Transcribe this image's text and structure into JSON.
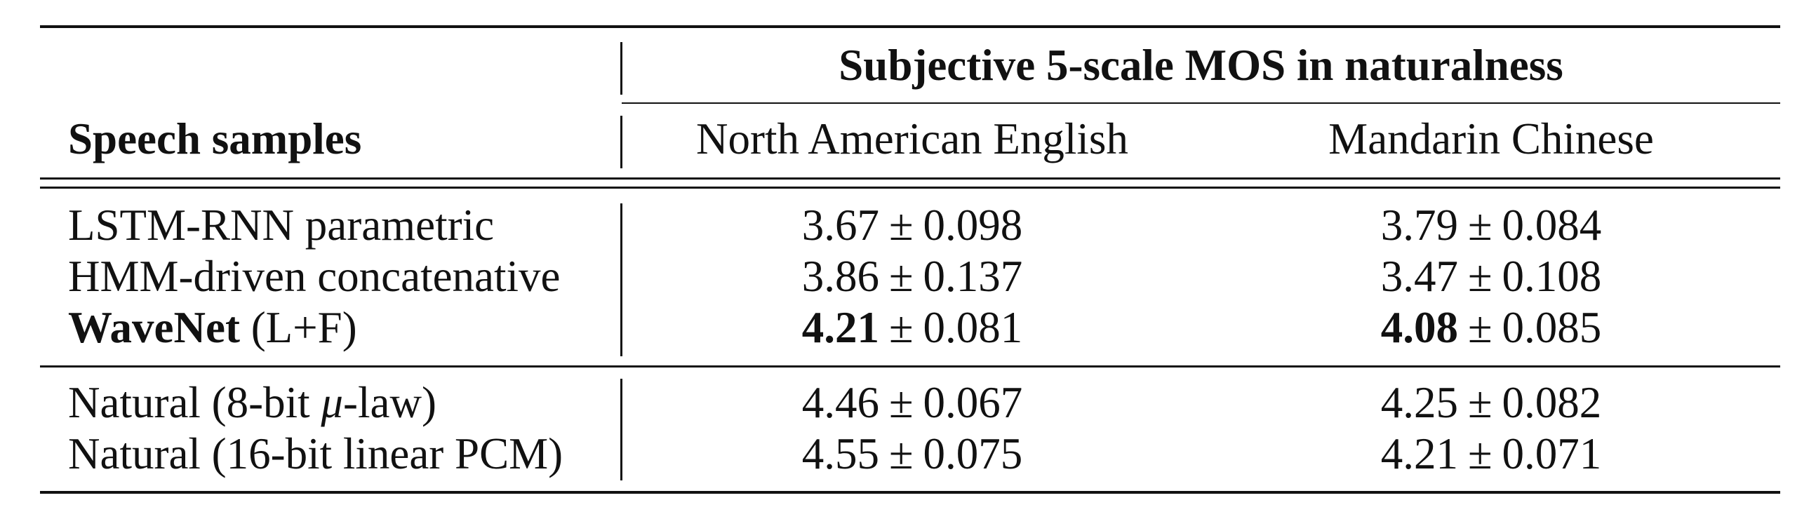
{
  "table": {
    "group_header": "Subjective 5-scale MOS in naturalness",
    "row_header": "Speech samples",
    "columns": [
      "North American English",
      "Mandarin Chinese"
    ],
    "pm_symbol": "±",
    "groups": [
      {
        "rows": [
          {
            "label": "LSTM-RNN parametric",
            "label_bold": "",
            "label_rest": "LSTM-RNN parametric",
            "cells": [
              {
                "mean": "3.67",
                "bold": false,
                "err": "0.098"
              },
              {
                "mean": "3.79",
                "bold": false,
                "err": "0.084"
              }
            ]
          },
          {
            "label": "HMM-driven concatenative",
            "label_bold": "",
            "label_rest": "HMM-driven concatenative",
            "cells": [
              {
                "mean": "3.86",
                "bold": false,
                "err": "0.137"
              },
              {
                "mean": "3.47",
                "bold": false,
                "err": "0.108"
              }
            ]
          },
          {
            "label": "WaveNet (L+F)",
            "label_bold": "WaveNet",
            "label_rest": " (L+F)",
            "cells": [
              {
                "mean": "4.21",
                "bold": true,
                "err": "0.081"
              },
              {
                "mean": "4.08",
                "bold": true,
                "err": "0.085"
              }
            ]
          }
        ]
      },
      {
        "rows": [
          {
            "label": "Natural (8-bit μ-law)",
            "label_bold": "",
            "label_pre": "Natural (8-bit ",
            "label_mu": "μ",
            "label_post": "-law)",
            "cells": [
              {
                "mean": "4.46",
                "bold": false,
                "err": "0.067"
              },
              {
                "mean": "4.25",
                "bold": false,
                "err": "0.082"
              }
            ]
          },
          {
            "label": "Natural (16-bit linear PCM)",
            "label_bold": "",
            "label_rest": "Natural (16-bit linear PCM)",
            "cells": [
              {
                "mean": "4.55",
                "bold": false,
                "err": "0.075"
              },
              {
                "mean": "4.21",
                "bold": false,
                "err": "0.071"
              }
            ]
          }
        ]
      }
    ]
  }
}
